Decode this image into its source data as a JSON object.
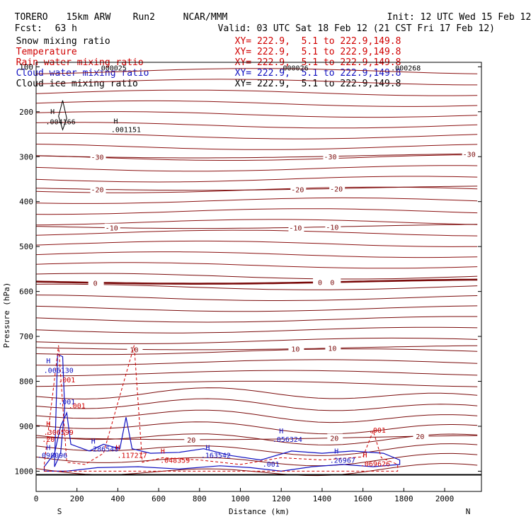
{
  "header": {
    "model": "TORERO",
    "resolution": "15km ARW",
    "run": "Run2",
    "center": "NCAR/MMM",
    "init": "Init: 12 UTC Wed 15 Feb 12",
    "fcst_label": "Fcst:",
    "fcst_hours": "63 h",
    "valid": "Valid: 03 UTC Sat 18 Feb 12 (21 CST Fri 17 Feb 12)"
  },
  "legend": [
    {
      "label": "Snow mixing ratio",
      "xy": "",
      "color": "#000000"
    },
    {
      "label": "Temperature",
      "xy": "XY= 222.9,  5.1 to 222.9,149.8",
      "color": "#d00000"
    },
    {
      "label": "Rain water mixing ratio",
      "xy": "XY= 222.9,  5.1 to 222.9,149.8",
      "color": "#d00000"
    },
    {
      "label": "Cloud water mixing ratio",
      "xy": "XY= 222.9,  5.1 to 222.9,149.8",
      "color": "#1010c0"
    },
    {
      "label": "Cloud ice mixing ratio",
      "xy": "XY= 222.9,  5.1 to 222.9,149.8",
      "color": "#000000"
    }
  ],
  "legend_xy_first": "XY= 222.9,  5.1 to 222.9,149.8",
  "chart_data": {
    "type": "cross-section contour",
    "xlabel": "Distance (km)",
    "ylabel": "Pressure (hPa)",
    "xlim": [
      0,
      2180
    ],
    "ylim": [
      1045,
      90
    ],
    "x_ticks": [
      0,
      200,
      400,
      600,
      800,
      1000,
      1200,
      1400,
      1600,
      1800,
      2000
    ],
    "y_ticks": [
      100,
      200,
      300,
      400,
      500,
      600,
      700,
      800,
      900,
      1000
    ],
    "end_labels": {
      "left": "S",
      "right": "N"
    },
    "temperature_isotherms": [
      {
        "label": "-30",
        "pressure": 298,
        "placements": [
          {
            "x": 300
          },
          {
            "x": 1440
          },
          {
            "x": 2120
          }
        ]
      },
      {
        "label": "-20",
        "pressure": 370,
        "placements": [
          {
            "x": 300
          },
          {
            "x": 1280
          },
          {
            "x": 1470
          }
        ]
      },
      {
        "label": "-10",
        "pressure": 455,
        "placements": [
          {
            "x": 370
          },
          {
            "x": 1270
          },
          {
            "x": 1450
          }
        ]
      },
      {
        "label": "0",
        "pressure": 578,
        "placements": [
          {
            "x": 290
          },
          {
            "x": 1390
          },
          {
            "x": 1450
          }
        ]
      },
      {
        "label": "10",
        "pressure": 725,
        "placements": [
          {
            "x": 480
          },
          {
            "x": 1270
          },
          {
            "x": 1450
          }
        ]
      },
      {
        "label": "20",
        "pressure": 925,
        "placements": [
          {
            "x": 760
          },
          {
            "x": 1460
          },
          {
            "x": 1880
          }
        ]
      }
    ],
    "field_labels": [
      {
        "text": ".000025",
        "x": 370,
        "p": 108,
        "color": "#000000"
      },
      {
        "text": ".000026",
        "x": 1260,
        "p": 108,
        "color": "#000000"
      },
      {
        "text": ".000268",
        "x": 1810,
        "p": 108,
        "color": "#000000"
      },
      {
        "text": "H",
        "x": 80,
        "p": 205,
        "color": "#000000"
      },
      {
        "text": ".004166",
        "x": 120,
        "p": 228,
        "color": "#000000"
      },
      {
        "text": "H",
        "x": 390,
        "p": 226,
        "color": "#000000"
      },
      {
        "text": ".001151",
        "x": 440,
        "p": 245,
        "color": "#000000"
      },
      {
        "text": "H",
        "x": 60,
        "p": 760,
        "color": "#1010c0"
      },
      {
        "text": ".066130",
        "x": 110,
        "p": 781,
        "color": "#1010c0"
      },
      {
        "text": ".001",
        "x": 150,
        "p": 802,
        "color": "#d00000"
      },
      {
        "text": ".001",
        "x": 150,
        "p": 851,
        "color": "#1010c0"
      },
      {
        "text": ".001",
        "x": 200,
        "p": 860,
        "color": "#d00000"
      },
      {
        "text": "H",
        "x": 60,
        "p": 900,
        "color": "#d00000"
      },
      {
        "text": ".306599",
        "x": 110,
        "p": 919,
        "color": "#d00000"
      },
      {
        "text": ".20",
        "x": 60,
        "p": 935,
        "color": "#d00000"
      },
      {
        "text": "H",
        "x": 60,
        "p": 953,
        "color": "#1010c0"
      },
      {
        "text": ".098096",
        "x": 80,
        "p": 970,
        "color": "#1010c0"
      },
      {
        "text": "H",
        "x": 280,
        "p": 939,
        "color": "#1010c0"
      },
      {
        "text": ".286548",
        "x": 330,
        "p": 956,
        "color": "#1010c0"
      },
      {
        "text": "H",
        "x": 400,
        "p": 953,
        "color": "#d00000"
      },
      {
        "text": ".117217",
        "x": 470,
        "p": 970,
        "color": "#d00000"
      },
      {
        "text": "H",
        "x": 620,
        "p": 961,
        "color": "#d00000"
      },
      {
        "text": ".048359",
        "x": 680,
        "p": 981,
        "color": "#d00000"
      },
      {
        "text": "H",
        "x": 840,
        "p": 953,
        "color": "#1010c0"
      },
      {
        "text": ".163542",
        "x": 880,
        "p": 970,
        "color": "#1010c0"
      },
      {
        "text": "H",
        "x": 1200,
        "p": 916,
        "color": "#1010c0"
      },
      {
        "text": ".056324",
        "x": 1230,
        "p": 935,
        "color": "#1010c0"
      },
      {
        "text": ".001",
        "x": 1150,
        "p": 990,
        "color": "#1010c0"
      },
      {
        "text": "H",
        "x": 1470,
        "p": 961,
        "color": "#1010c0"
      },
      {
        "text": ".26967",
        "x": 1500,
        "p": 981,
        "color": "#1010c0"
      },
      {
        "text": "H",
        "x": 1610,
        "p": 969,
        "color": "#d00000"
      },
      {
        "text": ".069626",
        "x": 1660,
        "p": 989,
        "color": "#d00000"
      },
      {
        "text": ".001",
        "x": 1670,
        "p": 914,
        "color": "#d00000"
      }
    ]
  }
}
